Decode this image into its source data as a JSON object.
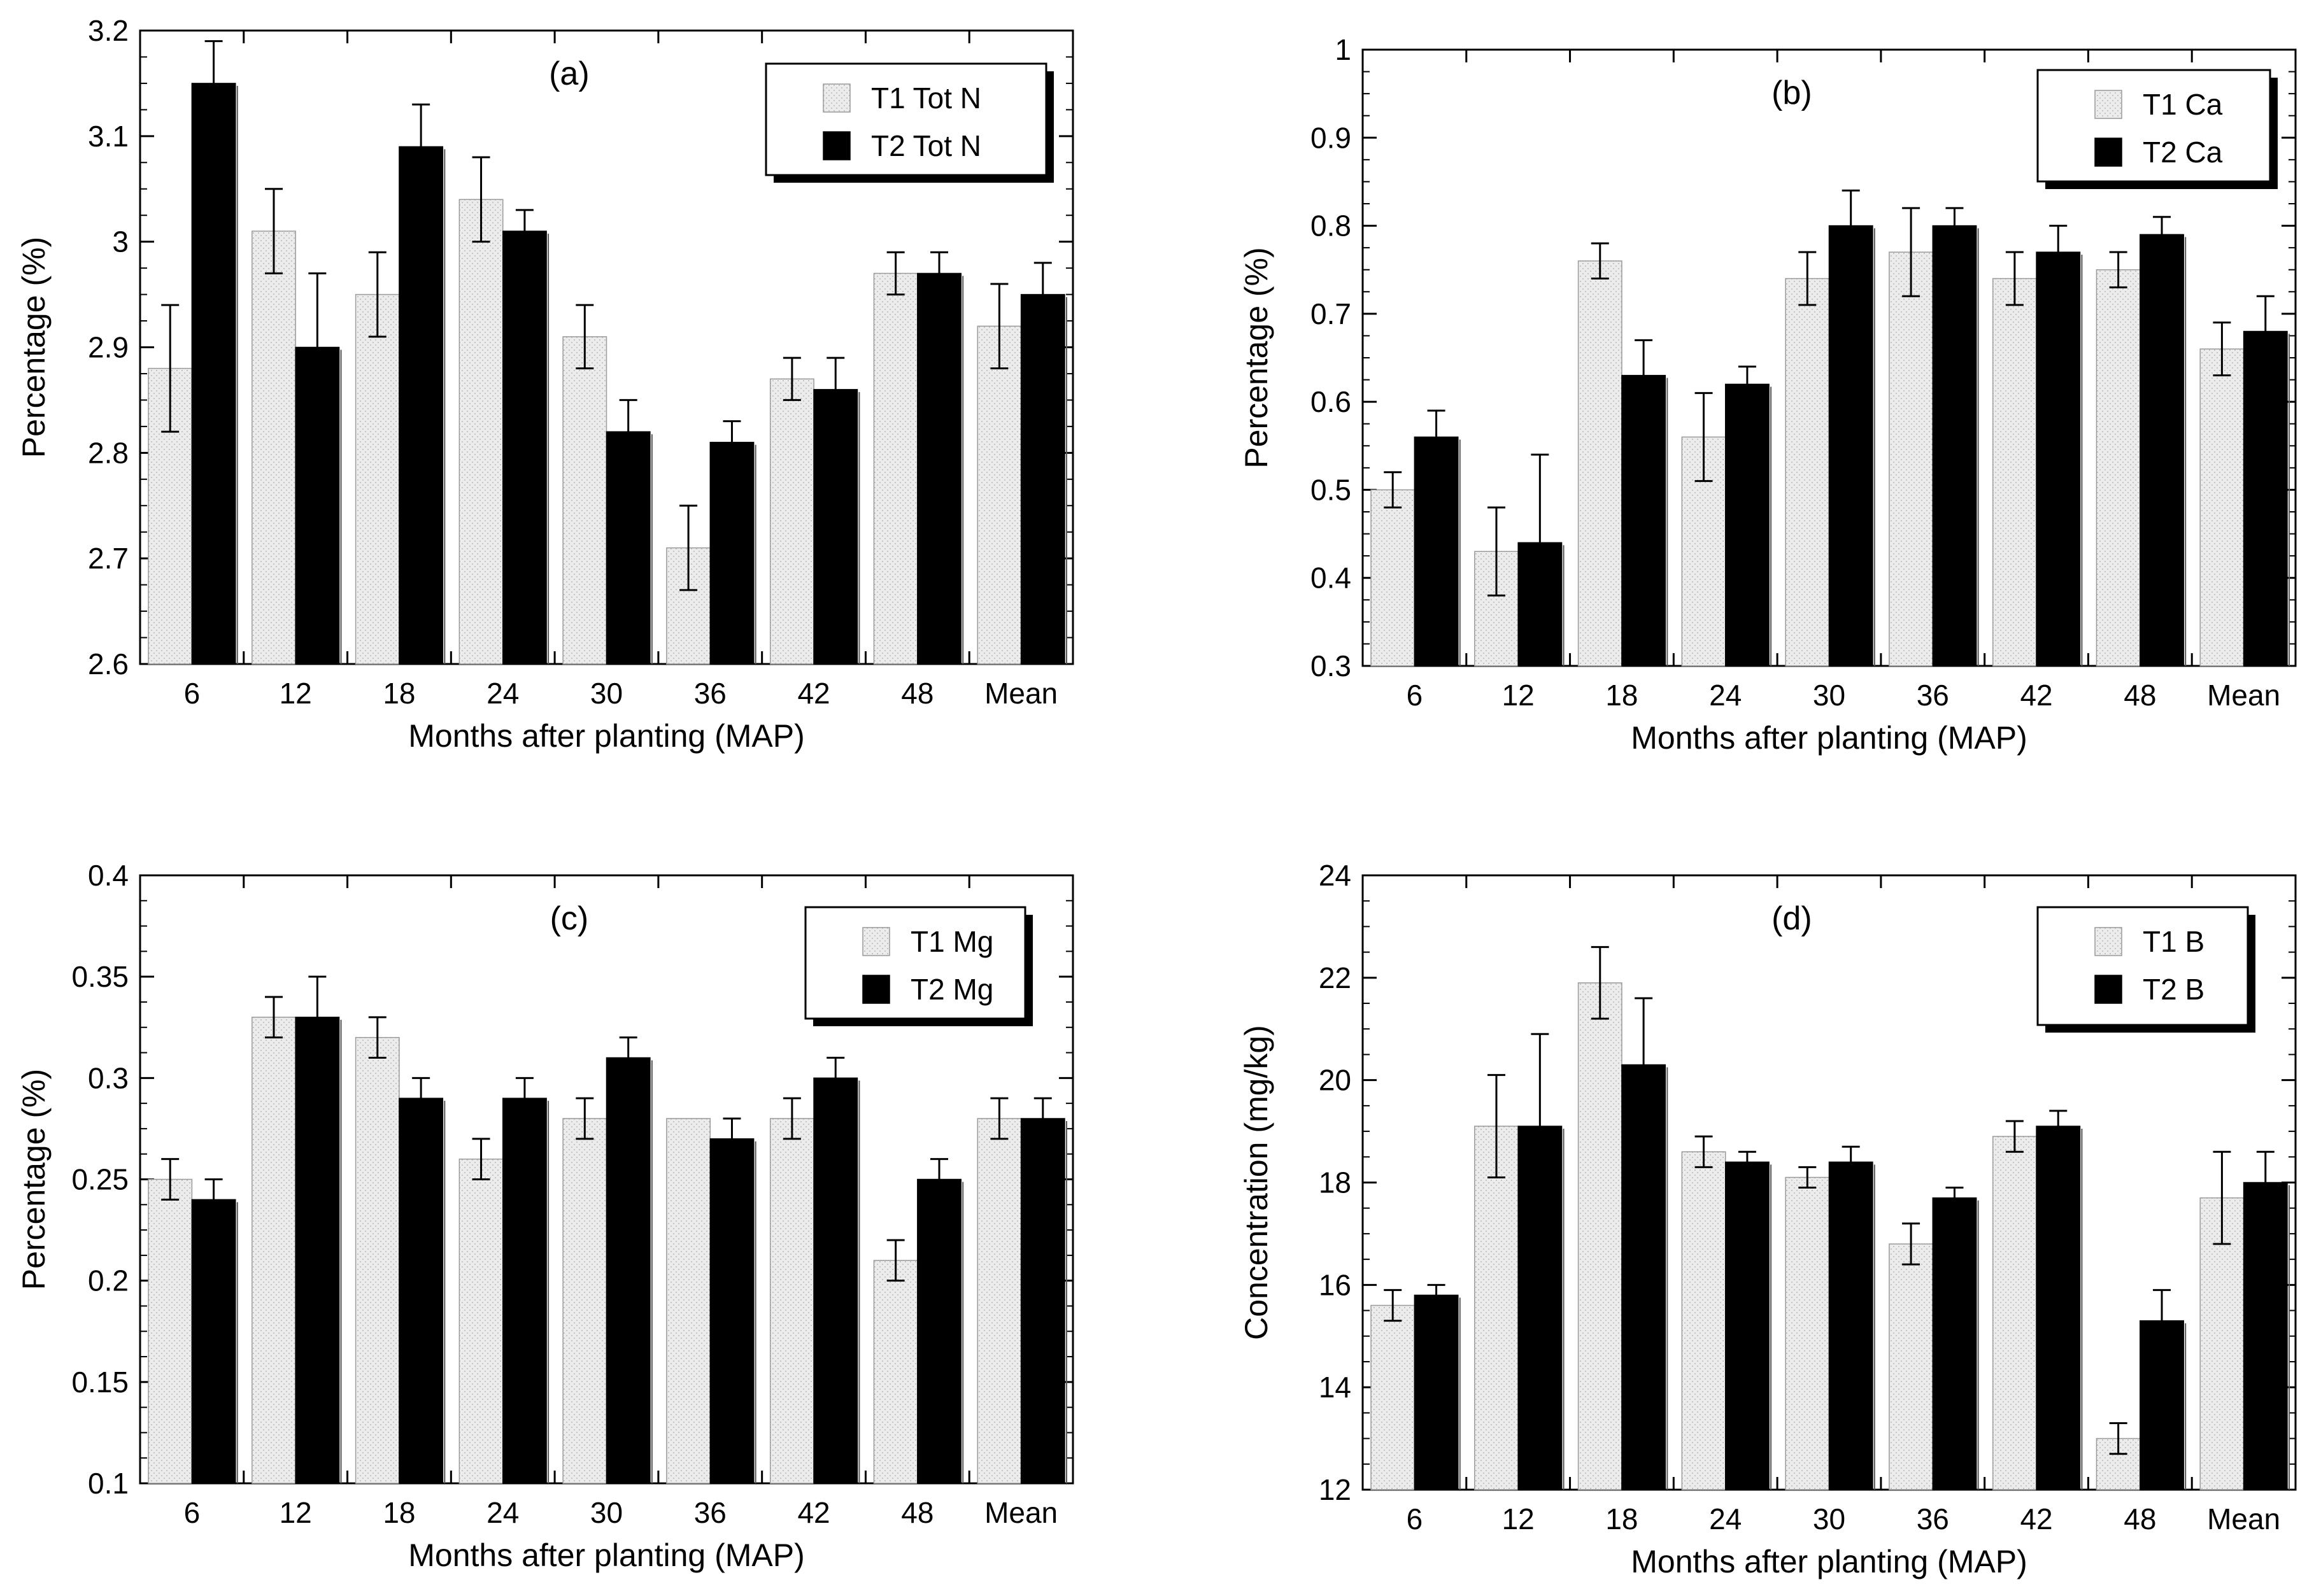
{
  "chart_data": [
    {
      "panel_label": "(a)",
      "type": "bar",
      "categories": [
        "6",
        "12",
        "18",
        "24",
        "30",
        "36",
        "42",
        "48",
        "Mean"
      ],
      "ylabel": "Percentage (%)",
      "xlabel": "Months after planting (MAP)",
      "ylim": [
        2.6,
        3.2
      ],
      "yticks": [
        2.6,
        2.7,
        2.8,
        2.9,
        3,
        3.1,
        3.2
      ],
      "ytick_labels": [
        "2.6",
        "2.7",
        "2.8",
        "2.9",
        "3",
        "3.1",
        "3.2"
      ],
      "legend_position": "top-right",
      "series": [
        {
          "name": "T1 Tot N",
          "values": [
            2.88,
            3.01,
            2.95,
            3.04,
            2.91,
            2.71,
            2.87,
            2.97,
            2.92
          ],
          "errors": [
            0.06,
            0.04,
            0.04,
            0.04,
            0.03,
            0.04,
            0.02,
            0.02,
            0.04
          ]
        },
        {
          "name": "T2 Tot N",
          "values": [
            3.15,
            2.9,
            3.09,
            3.01,
            2.82,
            2.81,
            2.86,
            2.97,
            2.95
          ],
          "errors": [
            0.04,
            0.07,
            0.04,
            0.02,
            0.03,
            0.02,
            0.03,
            0.02,
            0.03
          ]
        }
      ]
    },
    {
      "panel_label": "(b)",
      "type": "bar",
      "categories": [
        "6",
        "12",
        "18",
        "24",
        "30",
        "36",
        "42",
        "48",
        "Mean"
      ],
      "ylabel": "Percentage (%)",
      "xlabel": "Months after planting (MAP)",
      "ylim": [
        0.3,
        1.0
      ],
      "yticks": [
        0.3,
        0.4,
        0.5,
        0.6,
        0.7,
        0.8,
        0.9,
        1.0
      ],
      "ytick_labels": [
        "0.3",
        "0.4",
        "0.5",
        "0.6",
        "0.7",
        "0.8",
        "0.9",
        "1"
      ],
      "legend_position": "top-right",
      "series": [
        {
          "name": "T1 Ca",
          "values": [
            0.5,
            0.43,
            0.76,
            0.56,
            0.74,
            0.77,
            0.74,
            0.75,
            0.66
          ],
          "errors": [
            0.02,
            0.05,
            0.02,
            0.05,
            0.03,
            0.05,
            0.03,
            0.02,
            0.03
          ]
        },
        {
          "name": "T2 Ca",
          "values": [
            0.56,
            0.44,
            0.63,
            0.62,
            0.8,
            0.8,
            0.77,
            0.79,
            0.68
          ],
          "errors": [
            0.03,
            0.1,
            0.04,
            0.02,
            0.04,
            0.02,
            0.03,
            0.02,
            0.04
          ]
        }
      ]
    },
    {
      "panel_label": "(c)",
      "type": "bar",
      "categories": [
        "6",
        "12",
        "18",
        "24",
        "30",
        "36",
        "42",
        "48",
        "Mean"
      ],
      "ylabel": "Percentage (%)",
      "xlabel": "Months after planting (MAP)",
      "ylim": [
        0.1,
        0.4
      ],
      "yticks": [
        0.1,
        0.15,
        0.2,
        0.25,
        0.3,
        0.35,
        0.4
      ],
      "ytick_labels": [
        "0.1",
        "0.15",
        "0.2",
        "0.25",
        "0.3",
        "0.35",
        "0.4"
      ],
      "legend_position": "top-right",
      "series": [
        {
          "name": "T1 Mg",
          "values": [
            0.25,
            0.33,
            0.32,
            0.26,
            0.28,
            0.28,
            0.28,
            0.21,
            0.28
          ],
          "errors": [
            0.01,
            0.01,
            0.01,
            0.01,
            0.01,
            0.0,
            0.01,
            0.01,
            0.01
          ]
        },
        {
          "name": "T2 Mg",
          "values": [
            0.24,
            0.33,
            0.29,
            0.29,
            0.31,
            0.27,
            0.3,
            0.25,
            0.28
          ],
          "errors": [
            0.01,
            0.02,
            0.01,
            0.01,
            0.01,
            0.01,
            0.01,
            0.01,
            0.01
          ]
        }
      ]
    },
    {
      "panel_label": "(d)",
      "type": "bar",
      "categories": [
        "6",
        "12",
        "18",
        "24",
        "30",
        "36",
        "42",
        "48",
        "Mean"
      ],
      "ylabel": "Concentration (mg/kg)",
      "xlabel": "Months after planting (MAP)",
      "ylim": [
        12,
        24
      ],
      "yticks": [
        12,
        14,
        16,
        18,
        20,
        22,
        24
      ],
      "ytick_labels": [
        "12",
        "14",
        "16",
        "18",
        "20",
        "22",
        "24"
      ],
      "legend_position": "top-right",
      "series": [
        {
          "name": "T1 B",
          "values": [
            15.6,
            19.1,
            21.9,
            18.6,
            18.1,
            16.8,
            18.9,
            13.0,
            17.7
          ],
          "errors": [
            0.3,
            1.0,
            0.7,
            0.3,
            0.2,
            0.4,
            0.3,
            0.3,
            0.9
          ]
        },
        {
          "name": "T2 B",
          "values": [
            15.8,
            19.1,
            20.3,
            18.4,
            18.4,
            17.7,
            19.1,
            15.3,
            18.0
          ],
          "errors": [
            0.2,
            1.8,
            1.3,
            0.2,
            0.3,
            0.2,
            0.3,
            0.6,
            0.6
          ]
        }
      ]
    }
  ],
  "colors": {
    "t1_fill": "#ececec",
    "t1_stipple": "#b8b8b8",
    "t2_fill": "#000000",
    "axis": "#000000"
  }
}
